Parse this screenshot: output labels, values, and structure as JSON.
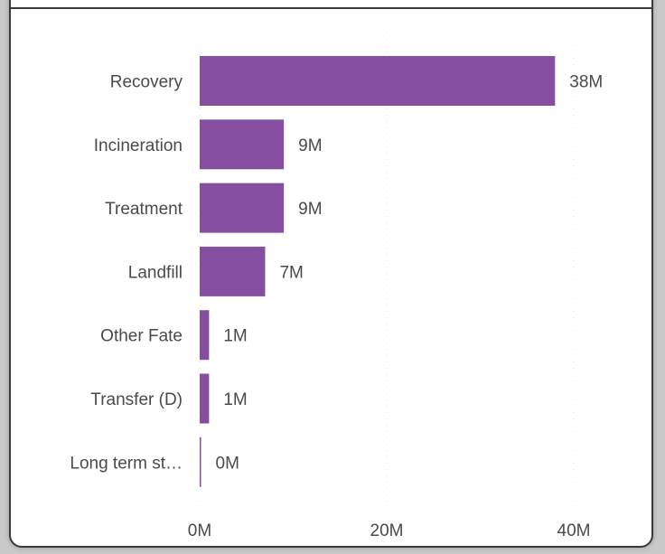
{
  "chart_data": {
    "type": "bar",
    "orientation": "horizontal",
    "categories": [
      "Recovery",
      "Incineration",
      "Treatment",
      "Landfill",
      "Other Fate",
      "Transfer (D)",
      "Long term st…"
    ],
    "values": [
      38,
      9,
      9,
      7,
      1,
      1,
      0.1
    ],
    "value_labels": [
      "38M",
      "9M",
      "9M",
      "7M",
      "1M",
      "1M",
      "0M"
    ],
    "x_ticks": [
      "0M",
      "20M",
      "40M"
    ],
    "x_tick_values": [
      0,
      20,
      40
    ],
    "xlim": [
      0,
      40
    ],
    "grid": true,
    "bar_color": "#864ea0"
  }
}
